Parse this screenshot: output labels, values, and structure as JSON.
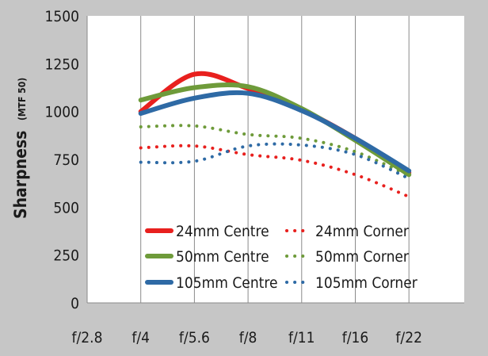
{
  "chart_data": {
    "type": "line",
    "title": "",
    "xlabel": "",
    "ylabel": "Sharpness",
    "ylabel_unit": "(MTF 50)",
    "categories": [
      "f/2.8",
      "f/4",
      "f/5.6",
      "f/8",
      "f/11",
      "f/16",
      "f/22"
    ],
    "ylim": [
      0,
      1500
    ],
    "yticks": [
      0,
      250,
      500,
      750,
      1000,
      1250,
      1500
    ],
    "grid": {
      "vertical": true,
      "horizontal": false
    },
    "legend_position": "bottom-center",
    "series": [
      {
        "name": "24mm Centre",
        "color": "#e8201e",
        "style": "solid",
        "values": [
          null,
          1000,
          1195,
          1120,
          1010,
          860,
          680
        ]
      },
      {
        "name": "24mm Corner",
        "color": "#e8201e",
        "style": "dotted",
        "values": [
          null,
          810,
          820,
          775,
          745,
          670,
          555
        ]
      },
      {
        "name": "50mm Centre",
        "color": "#6e9b3a",
        "style": "solid",
        "values": [
          null,
          1060,
          1125,
          1130,
          1015,
          850,
          670
        ]
      },
      {
        "name": "50mm Corner",
        "color": "#6e9b3a",
        "style": "dotted",
        "values": [
          null,
          920,
          925,
          880,
          860,
          790,
          665
        ]
      },
      {
        "name": "105mm Centre",
        "color": "#2e6aa5",
        "style": "solid",
        "values": [
          null,
          990,
          1070,
          1095,
          1005,
          860,
          690
        ]
      },
      {
        "name": "105mm Corner",
        "color": "#2e6aa5",
        "style": "dotted",
        "values": [
          null,
          735,
          740,
          820,
          825,
          775,
          650
        ]
      }
    ]
  }
}
